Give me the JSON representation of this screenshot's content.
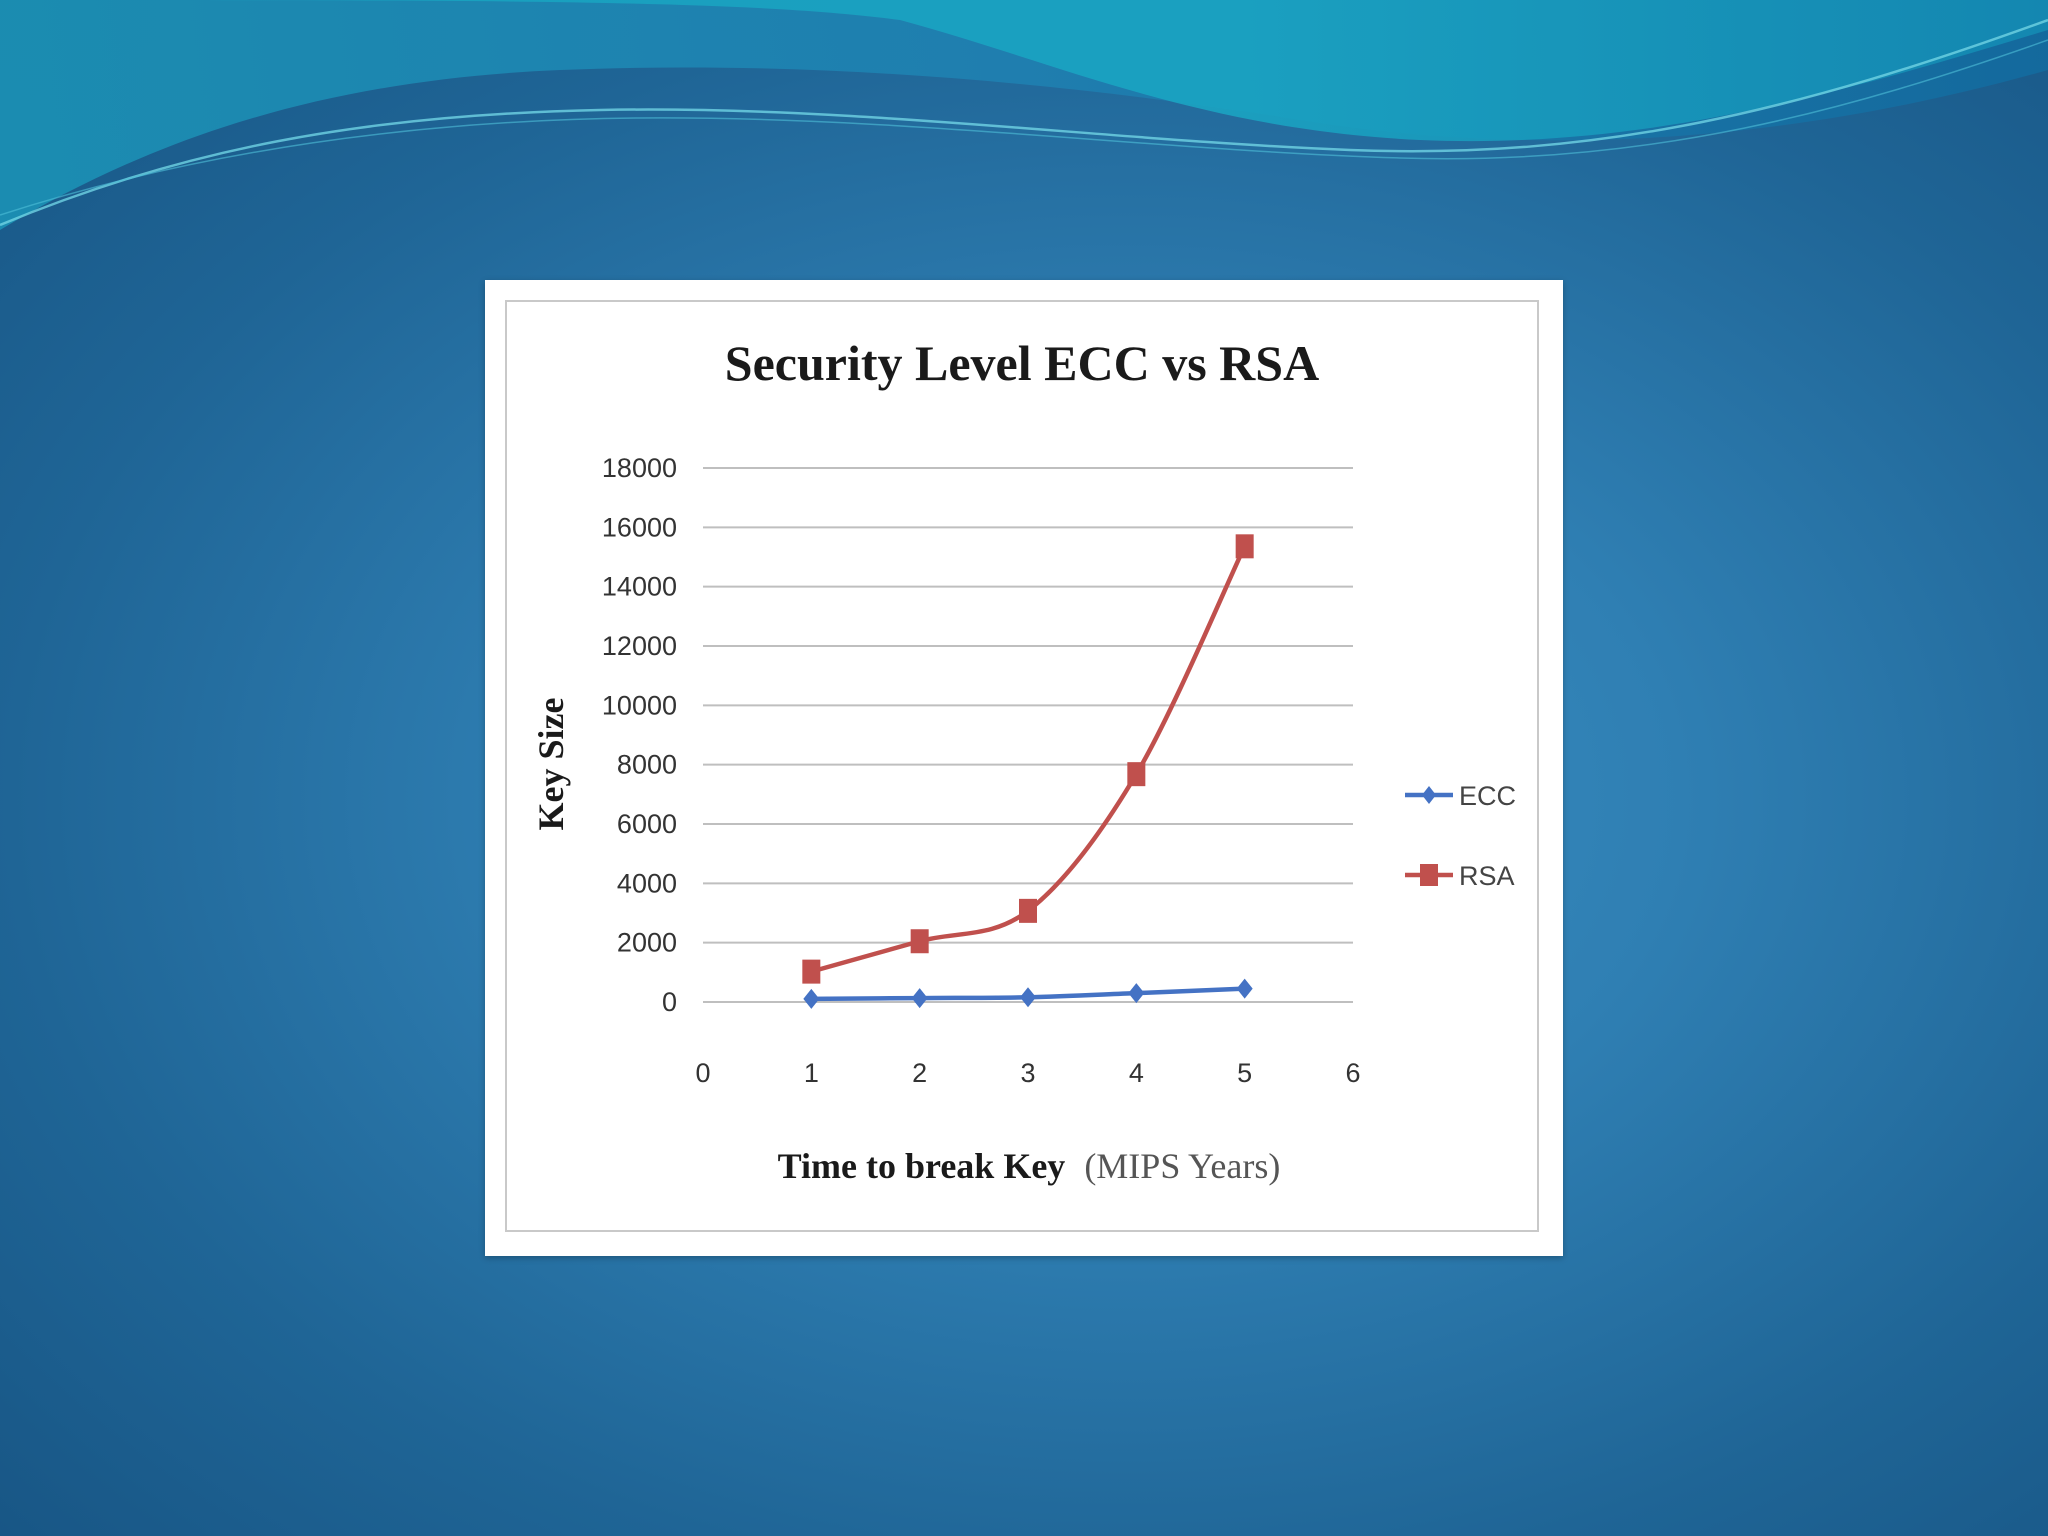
{
  "colors": {
    "slide_background": "#2f7fb3",
    "ecc": "#4472c4",
    "rsa": "#c0504d",
    "gridline": "#bfbfbf"
  },
  "chart_data": {
    "type": "line",
    "title": "Security Level ECC vs RSA",
    "xlabel_bold": "Time to break Key",
    "xlabel_units": "(MIPS Years)",
    "ylabel": "Key Size",
    "xlim": [
      0,
      6
    ],
    "ylim": [
      0,
      18000
    ],
    "x_ticks": [
      0,
      1,
      2,
      3,
      4,
      5,
      6
    ],
    "y_ticks": [
      0,
      2000,
      4000,
      6000,
      8000,
      10000,
      12000,
      14000,
      16000,
      18000
    ],
    "grid": true,
    "legend_position": "right",
    "series": [
      {
        "name": "ECC",
        "marker": "diamond",
        "color": "#4472c4",
        "x": [
          1,
          2,
          3,
          4,
          5
        ],
        "values": [
          106,
          132,
          160,
          300,
          450
        ]
      },
      {
        "name": "RSA",
        "marker": "square",
        "color": "#c0504d",
        "x": [
          1,
          2,
          3,
          4,
          5
        ],
        "values": [
          1024,
          2048,
          3072,
          7680,
          15360
        ]
      }
    ]
  }
}
